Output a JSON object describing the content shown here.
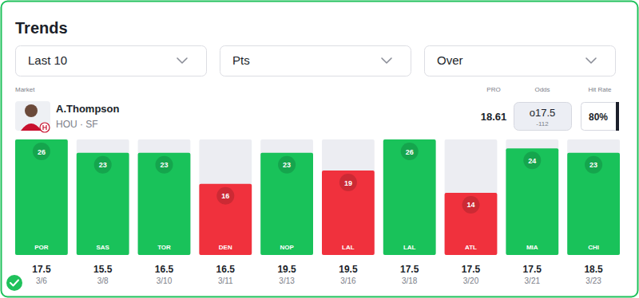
{
  "header": {
    "title": "Trends",
    "filters": [
      "Last 10",
      "Pts",
      "Over"
    ]
  },
  "market": {
    "label": "Market",
    "player": "A.Thompson",
    "team": "HOU · SF",
    "pro_label": "PRO",
    "pro": 18.61,
    "odds_label": "Odds",
    "odds": "o17.5",
    "odds_price": "-112",
    "hit_rate_label": "Hit Rate",
    "hit_rate": "80%"
  },
  "chart_data": {
    "type": "bar",
    "categories": [
      "POR",
      "SAS",
      "TOR",
      "DEN",
      "NOP",
      "LAL",
      "LAL",
      "ATL",
      "MIA",
      "CHI"
    ],
    "values": [
      26,
      23,
      23,
      16,
      23,
      19,
      26,
      14,
      24,
      23
    ],
    "colors": [
      "#19c25a",
      "#19c25a",
      "#19c25a",
      "#f0313d",
      "#19c25a",
      "#f0313d",
      "#19c25a",
      "#f0313d",
      "#19c25a",
      "#19c25a"
    ],
    "lines": [
      17.5,
      15.5,
      16.5,
      16.5,
      19.5,
      19.5,
      17.5,
      17.5,
      17.5,
      18.5
    ],
    "dates": [
      "3/6",
      "3/8",
      "3/10",
      "3/11",
      "3/13",
      "3/16",
      "3/18",
      "3/20",
      "3/21",
      "3/23"
    ],
    "ylim": [
      0,
      26
    ],
    "data_labels": true,
    "tick_labels": "x"
  }
}
